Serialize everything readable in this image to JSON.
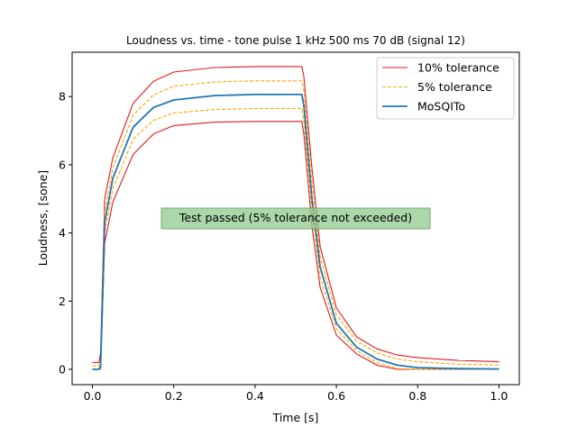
{
  "chart_data": {
    "type": "line",
    "title": "Loudness vs. time - tone pulse 1 kHz 500 ms 70 dB (signal 12)",
    "xlabel": "Time [s]",
    "ylabel": "Loudness, [sone]",
    "xlim": [
      -0.05,
      1.05
    ],
    "ylim": [
      -0.45,
      9.3
    ],
    "xticks": [
      0.0,
      0.2,
      0.4,
      0.6,
      0.8,
      1.0
    ],
    "xtick_labels": [
      "0.0",
      "0.2",
      "0.4",
      "0.6",
      "0.8",
      "1.0"
    ],
    "yticks": [
      0,
      2,
      4,
      6,
      8
    ],
    "ytick_labels": [
      "0",
      "2",
      "4",
      "6",
      "8"
    ],
    "grid": false,
    "legend_position": "top-right",
    "annotation": "Test passed (5% tolerance not exceeded)",
    "series": [
      {
        "name": "10% tolerance",
        "color": "#e41a1c",
        "style": "solid",
        "x": [
          0.0,
          0.016,
          0.02,
          0.03,
          0.05,
          0.1,
          0.15,
          0.2,
          0.3,
          0.4,
          0.5,
          0.515,
          0.52,
          0.54,
          0.56,
          0.6,
          0.65,
          0.7,
          0.75,
          0.8,
          0.9,
          1.0
        ],
        "values": [
          0.2,
          0.2,
          0.5,
          5.0,
          6.2,
          7.8,
          8.45,
          8.72,
          8.85,
          8.88,
          8.88,
          8.88,
          8.6,
          5.9,
          3.6,
          1.8,
          0.95,
          0.6,
          0.42,
          0.34,
          0.26,
          0.22
        ]
      },
      {
        "name": "10% tolerance",
        "color": "#e41a1c",
        "style": "solid",
        "legend": false,
        "x": [
          0.0,
          0.016,
          0.02,
          0.03,
          0.05,
          0.1,
          0.15,
          0.2,
          0.3,
          0.4,
          0.5,
          0.515,
          0.52,
          0.54,
          0.56,
          0.6,
          0.65,
          0.7,
          0.75,
          0.8,
          0.9,
          1.0
        ],
        "values": [
          0.0,
          0.0,
          0.0,
          3.7,
          4.9,
          6.3,
          6.9,
          7.15,
          7.25,
          7.27,
          7.27,
          7.27,
          6.9,
          4.2,
          2.4,
          1.0,
          0.45,
          0.12,
          0.0,
          0.0,
          0.0,
          0.0
        ]
      },
      {
        "name": "5% tolerance",
        "color": "#ffa500",
        "style": "dashed",
        "x": [
          0.0,
          0.016,
          0.02,
          0.03,
          0.05,
          0.1,
          0.15,
          0.2,
          0.3,
          0.4,
          0.5,
          0.515,
          0.52,
          0.54,
          0.56,
          0.6,
          0.65,
          0.7,
          0.75,
          0.8,
          0.9,
          1.0
        ],
        "values": [
          0.1,
          0.1,
          0.3,
          4.6,
          5.9,
          7.45,
          8.05,
          8.3,
          8.43,
          8.46,
          8.46,
          8.46,
          8.2,
          5.5,
          3.3,
          1.6,
          0.82,
          0.48,
          0.3,
          0.22,
          0.15,
          0.12
        ]
      },
      {
        "name": "5% tolerance",
        "color": "#ffa500",
        "style": "dashed",
        "legend": false,
        "x": [
          0.0,
          0.016,
          0.02,
          0.03,
          0.05,
          0.1,
          0.15,
          0.2,
          0.3,
          0.4,
          0.5,
          0.515,
          0.52,
          0.54,
          0.56,
          0.6,
          0.65,
          0.7,
          0.75,
          0.8,
          0.9,
          1.0
        ],
        "values": [
          0.0,
          0.0,
          0.0,
          4.0,
          5.3,
          6.75,
          7.3,
          7.52,
          7.62,
          7.65,
          7.65,
          7.65,
          7.3,
          4.6,
          2.7,
          1.2,
          0.55,
          0.2,
          0.02,
          0.0,
          0.0,
          0.0
        ]
      },
      {
        "name": "MoSQITo",
        "color": "#1f77b4",
        "style": "solid",
        "x": [
          0.0,
          0.016,
          0.02,
          0.03,
          0.05,
          0.1,
          0.15,
          0.2,
          0.3,
          0.4,
          0.5,
          0.515,
          0.52,
          0.54,
          0.56,
          0.6,
          0.65,
          0.7,
          0.75,
          0.8,
          0.9,
          1.0
        ],
        "values": [
          0.0,
          0.0,
          0.1,
          4.3,
          5.6,
          7.1,
          7.68,
          7.9,
          8.03,
          8.06,
          8.06,
          8.06,
          7.75,
          5.0,
          3.0,
          1.35,
          0.65,
          0.3,
          0.12,
          0.05,
          0.02,
          0.01
        ]
      }
    ]
  }
}
